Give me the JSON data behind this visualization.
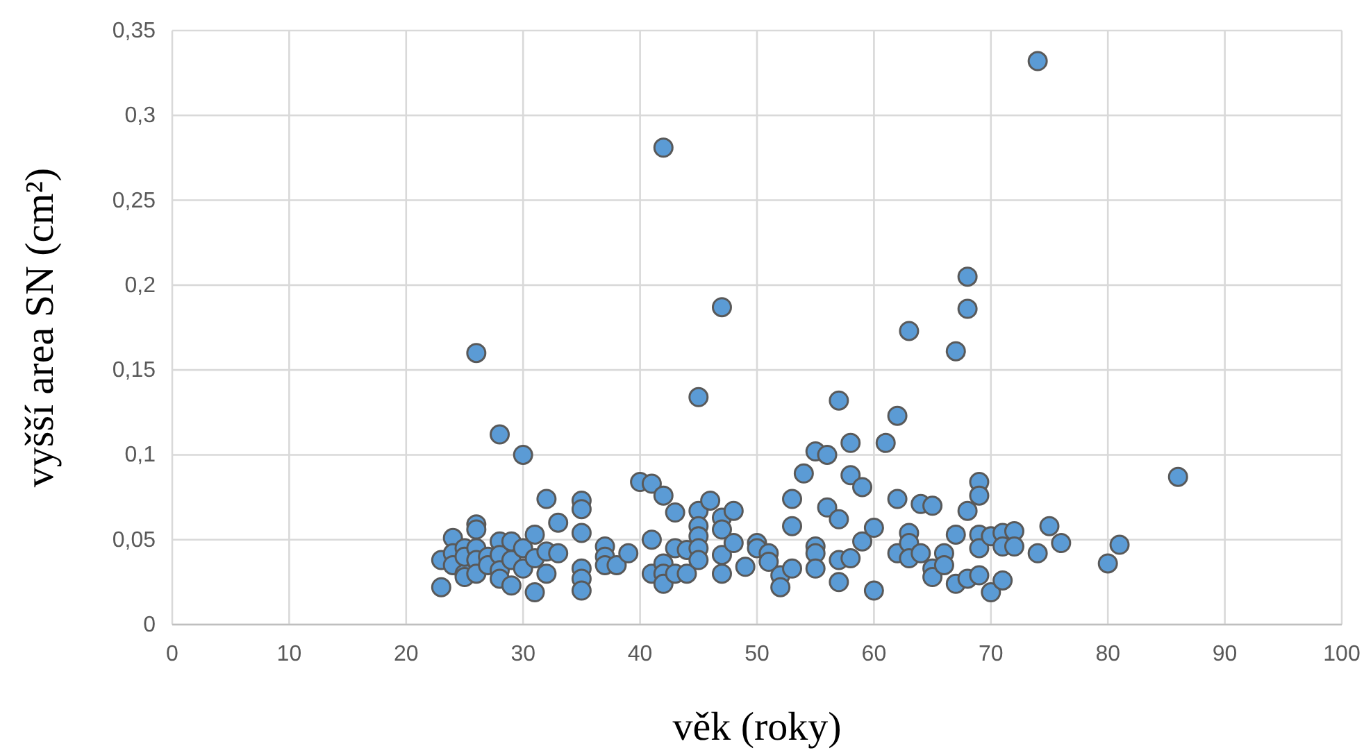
{
  "chart_data": {
    "type": "scatter",
    "xlabel": "věk (roky)",
    "ylabel": "vyšší area SN (cm²)",
    "xlim": [
      0,
      100
    ],
    "xticks": [
      0,
      10,
      20,
      30,
      40,
      50,
      60,
      70,
      80,
      90,
      100
    ],
    "ylim": [
      0,
      0.35
    ],
    "yticks": [
      {
        "value": 0,
        "label": "0"
      },
      {
        "value": 0.05,
        "label": "0,05"
      },
      {
        "value": 0.1,
        "label": "0,1"
      },
      {
        "value": 0.15,
        "label": "0,15"
      },
      {
        "value": 0.2,
        "label": "0,2"
      },
      {
        "value": 0.25,
        "label": "0,25"
      },
      {
        "value": 0.3,
        "label": "0,3"
      },
      {
        "value": 0.35,
        "label": "0,35"
      }
    ],
    "grid": true,
    "marker": "circle",
    "series": [
      {
        "color": "#5b9bd5",
        "x": [
          23,
          23,
          24,
          24,
          24,
          25,
          25,
          25,
          25,
          26,
          26,
          26,
          26,
          26,
          26,
          27,
          27,
          28,
          28,
          28,
          28,
          28,
          29,
          29,
          29,
          30,
          30,
          30,
          31,
          31,
          31,
          32,
          32,
          32,
          33,
          33,
          35,
          35,
          35,
          35,
          35,
          35,
          37,
          37,
          37,
          38,
          39,
          40,
          41,
          41,
          41,
          42,
          42,
          42,
          42,
          42,
          43,
          43,
          43,
          44,
          44,
          45,
          45,
          45,
          45,
          45,
          45,
          46,
          47,
          47,
          47,
          47,
          47,
          48,
          48,
          49,
          50,
          50,
          51,
          51,
          52,
          52,
          53,
          53,
          53,
          54,
          55,
          55,
          55,
          55,
          56,
          56,
          57,
          57,
          57,
          57,
          58,
          58,
          58,
          59,
          59,
          60,
          60,
          61,
          62,
          62,
          62,
          63,
          63,
          63,
          63,
          64,
          64,
          65,
          65,
          65,
          66,
          66,
          67,
          67,
          67,
          68,
          68,
          68,
          68,
          69,
          69,
          69,
          69,
          69,
          70,
          70,
          71,
          71,
          71,
          72,
          72,
          74,
          74,
          75,
          76,
          80,
          81,
          86
        ],
        "values": [
          0.038,
          0.022,
          0.051,
          0.042,
          0.035,
          0.03,
          0.028,
          0.045,
          0.04,
          0.16,
          0.059,
          0.056,
          0.045,
          0.038,
          0.03,
          0.04,
          0.035,
          0.112,
          0.049,
          0.041,
          0.032,
          0.027,
          0.049,
          0.038,
          0.023,
          0.1,
          0.045,
          0.033,
          0.053,
          0.039,
          0.019,
          0.074,
          0.043,
          0.03,
          0.06,
          0.042,
          0.073,
          0.068,
          0.054,
          0.033,
          0.027,
          0.02,
          0.046,
          0.04,
          0.035,
          0.035,
          0.042,
          0.084,
          0.083,
          0.05,
          0.03,
          0.281,
          0.076,
          0.036,
          0.03,
          0.024,
          0.066,
          0.045,
          0.03,
          0.044,
          0.03,
          0.134,
          0.067,
          0.058,
          0.052,
          0.045,
          0.038,
          0.073,
          0.187,
          0.063,
          0.056,
          0.041,
          0.03,
          0.067,
          0.048,
          0.034,
          0.048,
          0.045,
          0.042,
          0.037,
          0.029,
          0.022,
          0.074,
          0.058,
          0.033,
          0.089,
          0.102,
          0.046,
          0.042,
          0.033,
          0.1,
          0.069,
          0.132,
          0.062,
          0.038,
          0.025,
          0.107,
          0.088,
          0.039,
          0.081,
          0.049,
          0.057,
          0.02,
          0.107,
          0.123,
          0.074,
          0.042,
          0.173,
          0.054,
          0.048,
          0.039,
          0.071,
          0.042,
          0.07,
          0.033,
          0.028,
          0.042,
          0.035,
          0.161,
          0.053,
          0.024,
          0.205,
          0.186,
          0.067,
          0.027,
          0.084,
          0.076,
          0.053,
          0.045,
          0.029,
          0.052,
          0.019,
          0.054,
          0.046,
          0.026,
          0.055,
          0.046,
          0.332,
          0.042,
          0.058,
          0.048,
          0.036,
          0.047,
          0.087
        ]
      }
    ]
  }
}
